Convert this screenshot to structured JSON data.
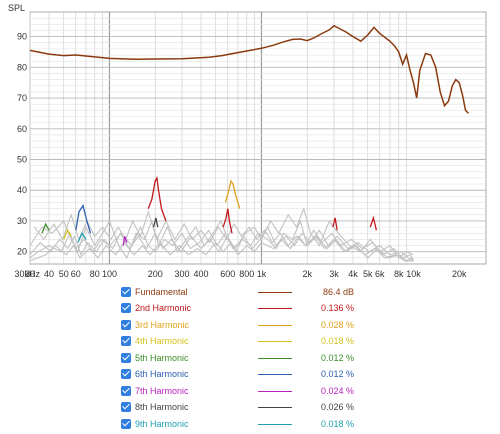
{
  "chart_data": {
    "type": "line",
    "x_scale": "log",
    "y_axis_title": "SPL",
    "xlim": [
      30,
      30000
    ],
    "ylim": [
      16,
      98
    ],
    "grid": true,
    "x_tick_labels": [
      "30",
      "40",
      "50",
      "60",
      "80",
      "100",
      "200",
      "300",
      "400",
      "600",
      "800",
      "1k",
      "2k",
      "3k",
      "4k",
      "5k",
      "6k",
      "8k",
      "10k",
      "20k",
      "30kHz"
    ],
    "y_tick_labels": [
      "20",
      "30",
      "40",
      "50",
      "60",
      "70",
      "80",
      "90"
    ],
    "series": [
      {
        "name": "Fundamental",
        "color": "#8b3a0f",
        "value_text": "86.4 dB",
        "points": [
          [
            30,
            85.5
          ],
          [
            40,
            84.3
          ],
          [
            50,
            83.8
          ],
          [
            60,
            84
          ],
          [
            80,
            83.4
          ],
          [
            100,
            82.9
          ],
          [
            150,
            82.6
          ],
          [
            200,
            82.7
          ],
          [
            300,
            82.8
          ],
          [
            450,
            83.3
          ],
          [
            550,
            83.8
          ],
          [
            650,
            84.5
          ],
          [
            800,
            85.3
          ],
          [
            1000,
            86.2
          ],
          [
            1200,
            87.2
          ],
          [
            1400,
            88.3
          ],
          [
            1600,
            89.1
          ],
          [
            1800,
            89.2
          ],
          [
            2000,
            88.7
          ],
          [
            2200,
            89.5
          ],
          [
            2500,
            91
          ],
          [
            2800,
            92.2
          ],
          [
            3000,
            93.5
          ],
          [
            3200,
            92.8
          ],
          [
            3600,
            91.5
          ],
          [
            4000,
            90
          ],
          [
            4500,
            88.5
          ],
          [
            5000,
            90.5
          ],
          [
            5500,
            93
          ],
          [
            6000,
            91
          ],
          [
            7000,
            88.5
          ],
          [
            7500,
            87
          ],
          [
            8000,
            85
          ],
          [
            8500,
            81
          ],
          [
            9000,
            84
          ],
          [
            9500,
            79
          ],
          [
            10000,
            75
          ],
          [
            10500,
            70
          ],
          [
            11000,
            79
          ],
          [
            12000,
            84.5
          ],
          [
            13000,
            84
          ],
          [
            14000,
            80
          ],
          [
            15000,
            72
          ],
          [
            16000,
            67.5
          ],
          [
            17000,
            69
          ],
          [
            18000,
            74
          ],
          [
            19000,
            76
          ],
          [
            20000,
            75
          ],
          [
            21000,
            71
          ],
          [
            22000,
            66
          ],
          [
            23000,
            65
          ]
        ]
      },
      {
        "name": "2nd Harmonic",
        "color": "#c0161b",
        "value_text": "0.136 %",
        "points": [
          [
            180,
            34
          ],
          [
            190,
            37
          ],
          [
            200,
            43
          ],
          [
            205,
            44
          ],
          [
            210,
            40
          ],
          [
            220,
            34
          ],
          [
            235,
            30
          ]
        ]
      },
      {
        "name": "3rd Harmonic",
        "color": "#e2a21b",
        "value_text": "0.028 %",
        "points": [
          [
            580,
            36
          ],
          [
            610,
            40
          ],
          [
            630,
            43
          ],
          [
            650,
            42
          ],
          [
            680,
            38
          ],
          [
            720,
            34
          ]
        ]
      },
      {
        "name": "4th Harmonic",
        "color": "#d4c21a",
        "value_text": "0.018 %",
        "points": [
          [
            50,
            24
          ],
          [
            53,
            27
          ],
          [
            56,
            25
          ]
        ]
      },
      {
        "name": "5th Harmonic",
        "color": "#3c8e2a",
        "value_text": "0.012 %",
        "points": [
          [
            36,
            26
          ],
          [
            38,
            29
          ],
          [
            40,
            27
          ]
        ]
      },
      {
        "name": "6th Harmonic",
        "color": "#2b5fb0",
        "value_text": "0.012 %",
        "points": [
          [
            60,
            27
          ],
          [
            63,
            33
          ],
          [
            67,
            35
          ],
          [
            71,
            30
          ],
          [
            75,
            26
          ]
        ]
      },
      {
        "name": "7th Harmonic",
        "color": "#b624c0",
        "value_text": "0.024 %",
        "points": [
          [
            123,
            22
          ],
          [
            126,
            25
          ],
          [
            130,
            23
          ]
        ]
      },
      {
        "name": "8th Harmonic",
        "color": "#444444",
        "value_text": "0.026 %",
        "points": [
          [
            195,
            28
          ],
          [
            202,
            31
          ],
          [
            208,
            28
          ]
        ]
      },
      {
        "name": "9th Harmonic",
        "color": "#1e9fae",
        "value_text": "0.018 %",
        "points": [
          [
            62,
            23
          ],
          [
            66,
            26
          ],
          [
            70,
            24
          ]
        ]
      }
    ],
    "extra_red_peaks": [
      [
        [
          560,
          28
        ],
        [
          585,
          31
        ],
        [
          600,
          34
        ],
        [
          615,
          30
        ],
        [
          640,
          26
        ]
      ],
      [
        [
          2950,
          28
        ],
        [
          3050,
          31
        ],
        [
          3150,
          27
        ]
      ],
      [
        [
          5200,
          28
        ],
        [
          5450,
          31
        ],
        [
          5700,
          27
        ]
      ]
    ],
    "background_gray_traces": [
      [
        [
          30,
          22
        ],
        [
          36,
          28
        ],
        [
          42,
          26
        ],
        [
          50,
          30
        ],
        [
          56,
          24
        ],
        [
          62,
          20
        ],
        [
          70,
          28
        ],
        [
          80,
          22
        ],
        [
          90,
          26
        ],
        [
          100,
          30
        ],
        [
          115,
          22
        ],
        [
          130,
          18
        ],
        [
          150,
          26
        ],
        [
          170,
          24
        ],
        [
          190,
          30
        ],
        [
          210,
          22
        ],
        [
          240,
          28
        ],
        [
          280,
          20
        ],
        [
          320,
          24
        ],
        [
          370,
          28
        ],
        [
          420,
          22
        ],
        [
          480,
          26
        ],
        [
          540,
          30
        ],
        [
          600,
          24
        ],
        [
          680,
          20
        ],
        [
          780,
          26
        ],
        [
          900,
          28
        ],
        [
          1000,
          24
        ],
        [
          1150,
          30
        ],
        [
          1300,
          26
        ],
        [
          1500,
          32
        ],
        [
          1700,
          28
        ],
        [
          1900,
          34
        ],
        [
          2100,
          26
        ],
        [
          2400,
          22
        ],
        [
          2800,
          30
        ],
        [
          3200,
          26
        ],
        [
          3800,
          22
        ],
        [
          4500,
          20
        ],
        [
          5200,
          24
        ],
        [
          6000,
          20
        ],
        [
          7000,
          22
        ],
        [
          8000,
          18
        ],
        [
          9000,
          20
        ],
        [
          10000,
          19
        ]
      ],
      [
        [
          30,
          18
        ],
        [
          34,
          20
        ],
        [
          40,
          22
        ],
        [
          48,
          20
        ],
        [
          55,
          26
        ],
        [
          60,
          21
        ],
        [
          68,
          24
        ],
        [
          78,
          20
        ],
        [
          88,
          24
        ],
        [
          100,
          22
        ],
        [
          120,
          26
        ],
        [
          140,
          22
        ],
        [
          160,
          28
        ],
        [
          180,
          22
        ],
        [
          200,
          20
        ],
        [
          230,
          24
        ],
        [
          260,
          22
        ],
        [
          300,
          26
        ],
        [
          340,
          21
        ],
        [
          390,
          23
        ],
        [
          450,
          27
        ],
        [
          510,
          22
        ],
        [
          580,
          26
        ],
        [
          650,
          21
        ],
        [
          750,
          24
        ],
        [
          850,
          22
        ],
        [
          950,
          26
        ],
        [
          1100,
          24
        ],
        [
          1250,
          21
        ],
        [
          1400,
          26
        ],
        [
          1600,
          24
        ],
        [
          1800,
          30
        ],
        [
          2000,
          22
        ],
        [
          2300,
          25
        ],
        [
          2700,
          21
        ],
        [
          3100,
          24
        ],
        [
          3600,
          20
        ],
        [
          4200,
          22
        ],
        [
          5000,
          18
        ],
        [
          5800,
          21
        ],
        [
          6800,
          18
        ],
        [
          8000,
          19
        ],
        [
          9000,
          17
        ],
        [
          10000,
          18
        ]
      ],
      [
        [
          30,
          17
        ],
        [
          38,
          19
        ],
        [
          44,
          22
        ],
        [
          52,
          19
        ],
        [
          58,
          22
        ],
        [
          64,
          18
        ],
        [
          74,
          21
        ],
        [
          84,
          18
        ],
        [
          95,
          22
        ],
        [
          110,
          19
        ],
        [
          125,
          23
        ],
        [
          145,
          19
        ],
        [
          165,
          22
        ],
        [
          185,
          19
        ],
        [
          215,
          23
        ],
        [
          250,
          19
        ],
        [
          290,
          22
        ],
        [
          330,
          19
        ],
        [
          380,
          21
        ],
        [
          430,
          19
        ],
        [
          500,
          23
        ],
        [
          560,
          20
        ],
        [
          630,
          23
        ],
        [
          700,
          19
        ],
        [
          800,
          22
        ],
        [
          900,
          20
        ],
        [
          1000,
          23
        ],
        [
          1200,
          21
        ],
        [
          1350,
          24
        ],
        [
          1550,
          21
        ],
        [
          1750,
          25
        ],
        [
          1950,
          22
        ],
        [
          2200,
          27
        ],
        [
          2500,
          23
        ],
        [
          2900,
          26
        ],
        [
          3300,
          22
        ],
        [
          3900,
          24
        ],
        [
          4600,
          21
        ],
        [
          5400,
          23
        ],
        [
          6300,
          19
        ],
        [
          7400,
          21
        ],
        [
          8500,
          18
        ],
        [
          9500,
          19
        ],
        [
          10000,
          17
        ]
      ],
      [
        [
          30,
          19
        ],
        [
          35,
          23
        ],
        [
          41,
          20
        ],
        [
          47,
          24
        ],
        [
          53,
          21
        ],
        [
          59,
          25
        ],
        [
          65,
          19
        ],
        [
          72,
          23
        ],
        [
          82,
          20
        ],
        [
          92,
          24
        ],
        [
          105,
          21
        ],
        [
          118,
          26
        ],
        [
          135,
          21
        ],
        [
          155,
          25
        ],
        [
          175,
          21
        ],
        [
          200,
          26
        ],
        [
          225,
          21
        ],
        [
          255,
          24
        ],
        [
          295,
          20
        ],
        [
          345,
          25
        ],
        [
          400,
          21
        ],
        [
          460,
          24
        ],
        [
          525,
          20
        ],
        [
          595,
          25
        ],
        [
          670,
          21
        ],
        [
          760,
          25
        ],
        [
          870,
          21
        ],
        [
          980,
          24
        ],
        [
          1100,
          28
        ],
        [
          1250,
          22
        ],
        [
          1450,
          25
        ],
        [
          1650,
          22
        ],
        [
          1850,
          26
        ],
        [
          2100,
          23
        ],
        [
          2400,
          27
        ],
        [
          2750,
          22
        ],
        [
          3150,
          25
        ],
        [
          3700,
          21
        ],
        [
          4300,
          23
        ],
        [
          5100,
          20
        ],
        [
          6000,
          22
        ],
        [
          7000,
          19
        ],
        [
          8200,
          20
        ],
        [
          9300,
          18
        ],
        [
          10000,
          17
        ]
      ],
      [
        [
          32,
          28
        ],
        [
          37,
          24
        ],
        [
          43,
          29
        ],
        [
          49,
          24
        ],
        [
          56,
          32
        ],
        [
          63,
          24
        ],
        [
          71,
          30
        ],
        [
          80,
          25
        ],
        [
          90,
          28
        ],
        [
          102,
          24
        ],
        [
          114,
          28
        ],
        [
          128,
          24
        ],
        [
          142,
          30
        ],
        [
          160,
          25
        ],
        [
          180,
          33
        ],
        [
          205,
          24
        ],
        [
          235,
          30
        ],
        [
          270,
          24
        ],
        [
          310,
          29
        ],
        [
          350,
          24
        ],
        [
          400,
          27
        ],
        [
          455,
          23
        ],
        [
          520,
          28
        ],
        [
          590,
          24
        ],
        [
          660,
          29
        ],
        [
          740,
          25
        ],
        [
          830,
          28
        ],
        [
          930,
          24
        ],
        [
          1050,
          27
        ],
        [
          1180,
          23
        ],
        [
          1330,
          26
        ],
        [
          1500,
          22
        ],
        [
          1700,
          25
        ],
        [
          1950,
          22
        ],
        [
          2250,
          25
        ],
        [
          2600,
          21
        ],
        [
          3000,
          24
        ],
        [
          3500,
          20
        ],
        [
          4100,
          22
        ],
        [
          4800,
          19
        ],
        [
          5600,
          21
        ],
        [
          6500,
          18
        ],
        [
          7600,
          19
        ],
        [
          8800,
          17
        ],
        [
          10000,
          17
        ]
      ]
    ]
  },
  "legend": [
    {
      "label": "Fundamental",
      "value": "86.4 dB",
      "color": "#8b3a0f"
    },
    {
      "label": "2nd Harmonic",
      "value": "0.136 %",
      "color": "#c0161b"
    },
    {
      "label": "3rd Harmonic",
      "value": "0.028 %",
      "color": "#e2a21b"
    },
    {
      "label": "4th Harmonic",
      "value": "0.018 %",
      "color": "#d4c21a"
    },
    {
      "label": "5th Harmonic",
      "value": "0.012 %",
      "color": "#3c8e2a"
    },
    {
      "label": "6th Harmonic",
      "value": "0.012 %",
      "color": "#2b5fb0"
    },
    {
      "label": "7th Harmonic",
      "value": "0.024 %",
      "color": "#b624c0"
    },
    {
      "label": "8th Harmonic",
      "value": "0.026 %",
      "color": "#444444"
    },
    {
      "label": "9th Harmonic",
      "value": "0.018 %",
      "color": "#1e9fae"
    }
  ]
}
